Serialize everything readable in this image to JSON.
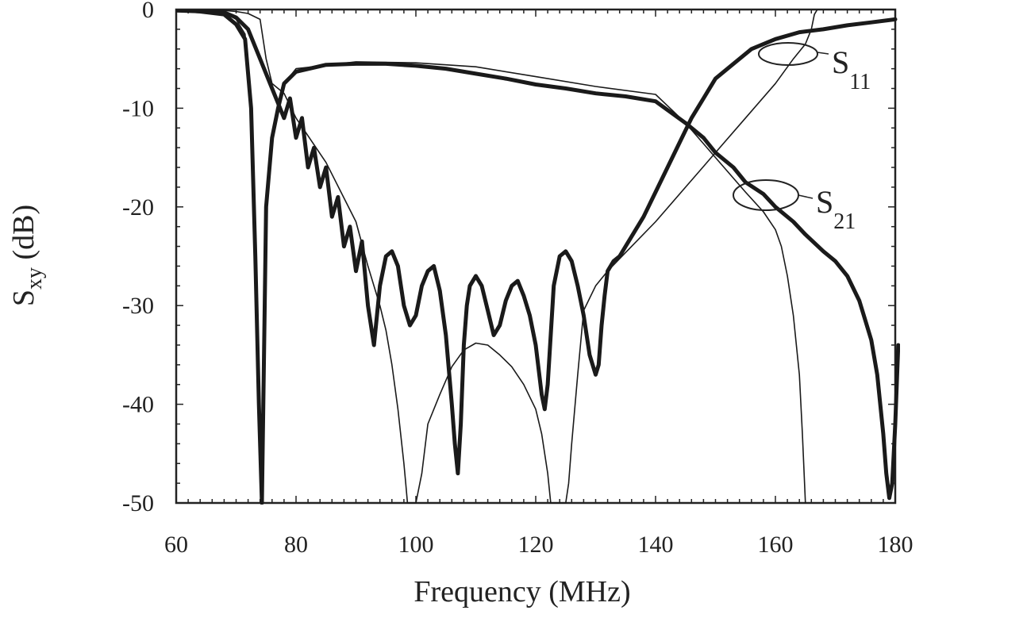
{
  "chart_data": {
    "type": "line",
    "xlabel": "Frequency (MHz)",
    "ylabel": {
      "main": "S",
      "sub": "xy",
      "rest": " (dB)"
    },
    "xlim": [
      60,
      180
    ],
    "ylim": [
      -50,
      0
    ],
    "x_ticks": [
      60,
      80,
      100,
      120,
      140,
      160,
      180
    ],
    "y_ticks": [
      0,
      -10,
      -20,
      -30,
      -40,
      -50
    ],
    "grid": false,
    "annotations": [
      {
        "main": "S",
        "sub": "11",
        "target_series": "S11"
      },
      {
        "main": "S",
        "sub": "21",
        "target_series": "S21"
      }
    ],
    "series": [
      {
        "id": "s21_measured",
        "style": "thick",
        "x": [
          60,
          64,
          68,
          70,
          71.5,
          72.5,
          73.2,
          73.8,
          74.3,
          75,
          76,
          77,
          78,
          80,
          85,
          90,
          95,
          100,
          105,
          110,
          115,
          120,
          125,
          130,
          135,
          140,
          145,
          148,
          150,
          153,
          155,
          158,
          160,
          163,
          165,
          168,
          170,
          172,
          174,
          175,
          176,
          177,
          177.5,
          178,
          178.5,
          179,
          179.5,
          180,
          180.5
        ],
        "y": [
          0,
          -0.2,
          -0.5,
          -1.5,
          -3,
          -10,
          -25,
          -40,
          -50,
          -20,
          -13,
          -10,
          -7.5,
          -6.3,
          -5.6,
          -5.5,
          -5.5,
          -5.7,
          -6,
          -6.5,
          -7,
          -7.6,
          -8,
          -8.5,
          -8.8,
          -9.3,
          -11.5,
          -13,
          -14.5,
          -16,
          -17.5,
          -18.7,
          -20,
          -21.5,
          -22.8,
          -24.5,
          -25.5,
          -27,
          -29.5,
          -31.5,
          -33.5,
          -37,
          -40,
          -43,
          -47,
          -49.5,
          -48,
          -42,
          -34
        ]
      },
      {
        "id": "s21_simulated",
        "style": "thin",
        "x": [
          60,
          68,
          70,
          71.5,
          72.5,
          73.2,
          73.8,
          74.3,
          75,
          76,
          77,
          78,
          80,
          90,
          100,
          110,
          120,
          130,
          140,
          145,
          150,
          155,
          158,
          160,
          161,
          162,
          163,
          164,
          164.5,
          165
        ],
        "y": [
          0,
          -0.3,
          -1,
          -2.5,
          -10,
          -25,
          -40,
          -50,
          -20,
          -13,
          -10,
          -7.5,
          -6,
          -5.3,
          -5.4,
          -5.8,
          -6.8,
          -7.8,
          -8.6,
          -11.5,
          -15,
          -18.5,
          -20.5,
          -22.3,
          -24,
          -27,
          -31,
          -37,
          -43,
          -50
        ]
      },
      {
        "id": "s11_measured",
        "style": "thick",
        "x": [
          60,
          65,
          68,
          70,
          72,
          74,
          76,
          77,
          78,
          79,
          80,
          81,
          82,
          83,
          84,
          85,
          86,
          87,
          88,
          89,
          90,
          91,
          92,
          93,
          94,
          95,
          96,
          97,
          98,
          99,
          100,
          101,
          102,
          103,
          104,
          105,
          106,
          106.5,
          107,
          107.5,
          108,
          108.5,
          109,
          110,
          111,
          112,
          113,
          114,
          115,
          116,
          117,
          118,
          119,
          120,
          121,
          121.5,
          122,
          122.5,
          123,
          124,
          125,
          126,
          127,
          128,
          129,
          130,
          130.5,
          131,
          131.5,
          132,
          133,
          134,
          136,
          138,
          140,
          142,
          144,
          146,
          148,
          150,
          153,
          156,
          160,
          164,
          168,
          172,
          176,
          180
        ],
        "y": [
          -0.1,
          -0.2,
          -0.3,
          -0.8,
          -2,
          -5,
          -8,
          -9.5,
          -11,
          -9,
          -13,
          -11,
          -16,
          -14,
          -18,
          -16,
          -21,
          -19,
          -24,
          -22,
          -26.5,
          -23.5,
          -30,
          -34,
          -28,
          -25,
          -24.5,
          -26,
          -30,
          -32,
          -31,
          -28,
          -26.5,
          -26,
          -28.5,
          -33,
          -40,
          -44,
          -47,
          -42,
          -34,
          -30,
          -28,
          -27,
          -28,
          -30.5,
          -33,
          -32,
          -29.5,
          -28,
          -27.5,
          -29,
          -31,
          -34,
          -39,
          -40.5,
          -38,
          -33,
          -28,
          -25,
          -24.5,
          -25.5,
          -28,
          -31,
          -35,
          -37,
          -36,
          -32,
          -29,
          -26.5,
          -25.5,
          -25,
          -23,
          -21,
          -18.5,
          -16,
          -13.5,
          -11,
          -9,
          -7,
          -5.5,
          -4,
          -3,
          -2.3,
          -2,
          -1.6,
          -1.3,
          -1
        ]
      },
      {
        "id": "s11_simulated",
        "style": "thin",
        "x": [
          60,
          65,
          68,
          70,
          72,
          74,
          75,
          76,
          78,
          80,
          85,
          90,
          92,
          94,
          95,
          96,
          97,
          98,
          98.3,
          98.6,
          99,
          100,
          101,
          102,
          104,
          106,
          108,
          110,
          112,
          114,
          116,
          118,
          120,
          121,
          122,
          122.5,
          123,
          125,
          125.5,
          126,
          127,
          128,
          130,
          132,
          136,
          140,
          145,
          150,
          155,
          160,
          163,
          165,
          166,
          166.5,
          167,
          170,
          175,
          180
        ],
        "y": [
          0,
          0,
          -0.1,
          -0.2,
          -0.4,
          -1,
          -5,
          -7.5,
          -8.5,
          -11,
          -15.5,
          -21.5,
          -26,
          -30,
          -32.5,
          -36,
          -40.5,
          -46,
          -48,
          -50,
          -50,
          -50,
          -47,
          -42,
          -39,
          -36.2,
          -34.5,
          -33.8,
          -34,
          -35,
          -36.2,
          -38,
          -40.5,
          -43,
          -47,
          -50,
          -50,
          -50,
          -48,
          -44,
          -37,
          -30.5,
          -28,
          -26.5,
          -24,
          -21.5,
          -18,
          -14.5,
          -11,
          -7.5,
          -5,
          -3.5,
          -2,
          -0.5,
          0,
          0,
          0,
          0
        ]
      }
    ]
  }
}
